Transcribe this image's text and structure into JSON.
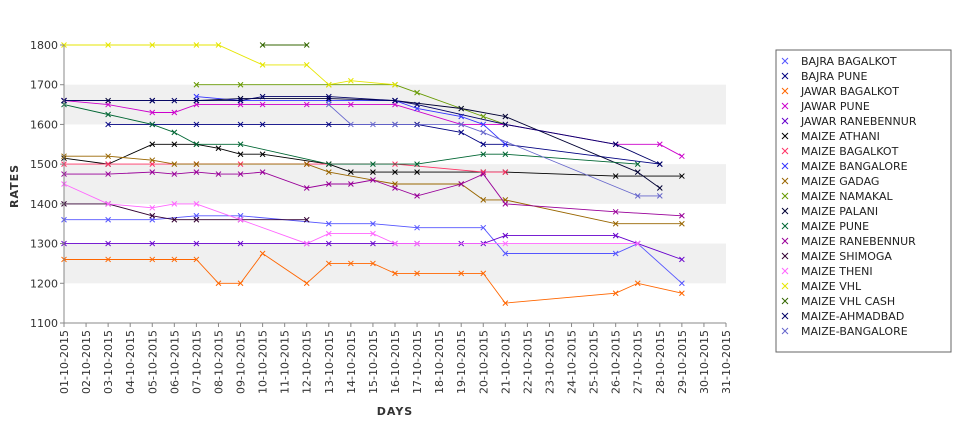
{
  "chart_data": {
    "type": "line",
    "title": "",
    "xlabel": "DAYS",
    "ylabel": "RATES",
    "ylim": [
      1100,
      1800
    ],
    "yticks": [
      1100,
      1200,
      1300,
      1400,
      1500,
      1600,
      1700,
      1800
    ],
    "grid": "alternating horizontal bands",
    "legend_position": "right",
    "x_dates": [
      "01-10-2015",
      "02-10-2015",
      "03-10-2015",
      "04-10-2015",
      "05-10-2015",
      "06-10-2015",
      "07-10-2015",
      "08-10-2015",
      "09-10-2015",
      "10-10-2015",
      "11-10-2015",
      "12-10-2015",
      "13-10-2015",
      "14-10-2015",
      "15-10-2015",
      "16-10-2015",
      "17-10-2015",
      "18-10-2015",
      "19-10-2015",
      "20-10-2015",
      "21-10-2015",
      "22-10-2015",
      "23-10-2015",
      "24-10-2015",
      "25-10-2015",
      "26-10-2015",
      "27-10-2015",
      "28-10-2015",
      "29-10-2015",
      "30-10-2015",
      "31-10-2015"
    ],
    "series": [
      {
        "name": "BAJRA BAGALKOT",
        "color": "#5555ff",
        "points": [
          [
            "01-10-2015",
            1360
          ],
          [
            "03-10-2015",
            1360
          ],
          [
            "05-10-2015",
            1360
          ],
          [
            "07-10-2015",
            1370
          ],
          [
            "09-10-2015",
            1370
          ],
          [
            "13-10-2015",
            1350
          ],
          [
            "15-10-2015",
            1350
          ],
          [
            "17-10-2015",
            1340
          ],
          [
            "20-10-2015",
            1340
          ],
          [
            "21-10-2015",
            1275
          ],
          [
            "26-10-2015",
            1275
          ],
          [
            "27-10-2015",
            1300
          ],
          [
            "29-10-2015",
            1200
          ]
        ]
      },
      {
        "name": "BAJRA PUNE",
        "color": "#000080",
        "points": [
          [
            "03-10-2015",
            1600
          ],
          [
            "05-10-2015",
            1600
          ],
          [
            "07-10-2015",
            1600
          ],
          [
            "09-10-2015",
            1600
          ],
          [
            "10-10-2015",
            1600
          ],
          [
            "13-10-2015",
            1600
          ],
          [
            "16-10-2015",
            1600
          ],
          [
            "17-10-2015",
            1600
          ],
          [
            "19-10-2015",
            1580
          ],
          [
            "20-10-2015",
            1550
          ],
          [
            "21-10-2015",
            1550
          ],
          [
            "28-10-2015",
            1500
          ]
        ]
      },
      {
        "name": "JAWAR BAGALKOT",
        "color": "#ff6600",
        "points": [
          [
            "01-10-2015",
            1260
          ],
          [
            "03-10-2015",
            1260
          ],
          [
            "05-10-2015",
            1260
          ],
          [
            "06-10-2015",
            1260
          ],
          [
            "07-10-2015",
            1260
          ],
          [
            "08-10-2015",
            1200
          ],
          [
            "09-10-2015",
            1200
          ],
          [
            "10-10-2015",
            1275
          ],
          [
            "12-10-2015",
            1200
          ],
          [
            "13-10-2015",
            1250
          ],
          [
            "14-10-2015",
            1250
          ],
          [
            "15-10-2015",
            1250
          ],
          [
            "16-10-2015",
            1225
          ],
          [
            "17-10-2015",
            1225
          ],
          [
            "19-10-2015",
            1225
          ],
          [
            "20-10-2015",
            1225
          ],
          [
            "21-10-2015",
            1150
          ],
          [
            "26-10-2015",
            1175
          ],
          [
            "27-10-2015",
            1200
          ],
          [
            "29-10-2015",
            1175
          ]
        ]
      },
      {
        "name": "JAWAR PUNE",
        "color": "#cc00cc",
        "points": [
          [
            "01-10-2015",
            1660
          ],
          [
            "03-10-2015",
            1650
          ],
          [
            "05-10-2015",
            1630
          ],
          [
            "06-10-2015",
            1630
          ],
          [
            "07-10-2015",
            1650
          ],
          [
            "09-10-2015",
            1650
          ],
          [
            "10-10-2015",
            1650
          ],
          [
            "12-10-2015",
            1650
          ],
          [
            "14-10-2015",
            1650
          ],
          [
            "16-10-2015",
            1650
          ],
          [
            "19-10-2015",
            1600
          ],
          [
            "21-10-2015",
            1600
          ],
          [
            "26-10-2015",
            1550
          ],
          [
            "28-10-2015",
            1550
          ],
          [
            "29-10-2015",
            1520
          ]
        ]
      },
      {
        "name": "JAWAR RANEBENNUR",
        "color": "#6600cc",
        "points": [
          [
            "01-10-2015",
            1300
          ],
          [
            "03-10-2015",
            1300
          ],
          [
            "05-10-2015",
            1300
          ],
          [
            "07-10-2015",
            1300
          ],
          [
            "09-10-2015",
            1300
          ],
          [
            "12-10-2015",
            1300
          ],
          [
            "13-10-2015",
            1300
          ],
          [
            "15-10-2015",
            1300
          ],
          [
            "16-10-2015",
            1300
          ],
          [
            "17-10-2015",
            1300
          ],
          [
            "19-10-2015",
            1300
          ],
          [
            "20-10-2015",
            1300
          ],
          [
            "21-10-2015",
            1320
          ],
          [
            "26-10-2015",
            1320
          ],
          [
            "27-10-2015",
            1300
          ],
          [
            "29-10-2015",
            1260
          ]
        ]
      },
      {
        "name": "MAIZE ATHANI",
        "color": "#000000",
        "points": [
          [
            "01-10-2015",
            1515
          ],
          [
            "03-10-2015",
            1500
          ],
          [
            "05-10-2015",
            1550
          ],
          [
            "06-10-2015",
            1550
          ],
          [
            "07-10-2015",
            1550
          ],
          [
            "08-10-2015",
            1540
          ],
          [
            "09-10-2015",
            1525
          ],
          [
            "10-10-2015",
            1525
          ],
          [
            "13-10-2015",
            1500
          ],
          [
            "14-10-2015",
            1480
          ],
          [
            "15-10-2015",
            1480
          ],
          [
            "16-10-2015",
            1480
          ],
          [
            "17-10-2015",
            1480
          ],
          [
            "20-10-2015",
            1480
          ],
          [
            "21-10-2015",
            1480
          ],
          [
            "26-10-2015",
            1470
          ],
          [
            "29-10-2015",
            1470
          ]
        ]
      },
      {
        "name": "MAIZE BAGALKOT",
        "color": "#ff3366",
        "points": [
          [
            "01-10-2015",
            1500
          ],
          [
            "03-10-2015",
            1500
          ],
          [
            "05-10-2015",
            1500
          ],
          [
            "07-10-2015",
            1500
          ],
          [
            "09-10-2015",
            1500
          ],
          [
            "12-10-2015",
            1500
          ],
          [
            "13-10-2015",
            1500
          ],
          [
            "16-10-2015",
            1500
          ],
          [
            "20-10-2015",
            1480
          ],
          [
            "21-10-2015",
            1480
          ]
        ]
      },
      {
        "name": "MAIZE BANGALORE",
        "color": "#3333ff",
        "points": [
          [
            "07-10-2015",
            1670
          ],
          [
            "09-10-2015",
            1660
          ],
          [
            "13-10-2015",
            1660
          ],
          [
            "16-10-2015",
            1660
          ],
          [
            "17-10-2015",
            1640
          ],
          [
            "19-10-2015",
            1620
          ],
          [
            "20-10-2015",
            1600
          ],
          [
            "21-10-2015",
            1550
          ]
        ]
      },
      {
        "name": "MAIZE GADAG",
        "color": "#996600",
        "points": [
          [
            "01-10-2015",
            1520
          ],
          [
            "03-10-2015",
            1520
          ],
          [
            "05-10-2015",
            1510
          ],
          [
            "06-10-2015",
            1500
          ],
          [
            "07-10-2015",
            1500
          ],
          [
            "12-10-2015",
            1500
          ],
          [
            "13-10-2015",
            1480
          ],
          [
            "16-10-2015",
            1450
          ],
          [
            "19-10-2015",
            1450
          ],
          [
            "20-10-2015",
            1410
          ],
          [
            "21-10-2015",
            1410
          ],
          [
            "26-10-2015",
            1350
          ],
          [
            "29-10-2015",
            1350
          ]
        ]
      },
      {
        "name": "MAIZE NAMAKAL",
        "color": "#669900",
        "points": [
          [
            "07-10-2015",
            1700
          ],
          [
            "09-10-2015",
            1700
          ],
          [
            "13-10-2015",
            1700
          ],
          [
            "16-10-2015",
            1700
          ],
          [
            "17-10-2015",
            1680
          ],
          [
            "19-10-2015",
            1640
          ],
          [
            "20-10-2015",
            1620
          ],
          [
            "21-10-2015",
            1600
          ]
        ]
      },
      {
        "name": "MAIZE PALANI",
        "color": "#000033",
        "points": [
          [
            "01-10-2015",
            1660
          ],
          [
            "03-10-2015",
            1660
          ],
          [
            "05-10-2015",
            1660
          ],
          [
            "07-10-2015",
            1660
          ],
          [
            "09-10-2015",
            1665
          ],
          [
            "13-10-2015",
            1665
          ],
          [
            "16-10-2015",
            1660
          ],
          [
            "19-10-2015",
            1640
          ],
          [
            "21-10-2015",
            1620
          ],
          [
            "27-10-2015",
            1480
          ],
          [
            "28-10-2015",
            1440
          ]
        ]
      },
      {
        "name": "MAIZE PUNE",
        "color": "#006633",
        "points": [
          [
            "01-10-2015",
            1650
          ],
          [
            "03-10-2015",
            1625
          ],
          [
            "05-10-2015",
            1600
          ],
          [
            "06-10-2015",
            1580
          ],
          [
            "07-10-2015",
            1550
          ],
          [
            "09-10-2015",
            1550
          ],
          [
            "13-10-2015",
            1500
          ],
          [
            "15-10-2015",
            1500
          ],
          [
            "17-10-2015",
            1500
          ],
          [
            "20-10-2015",
            1525
          ],
          [
            "21-10-2015",
            1525
          ],
          [
            "27-10-2015",
            1500
          ]
        ]
      },
      {
        "name": "MAIZE RANEBENNUR",
        "color": "#990099",
        "points": [
          [
            "01-10-2015",
            1475
          ],
          [
            "03-10-2015",
            1475
          ],
          [
            "05-10-2015",
            1480
          ],
          [
            "06-10-2015",
            1475
          ],
          [
            "07-10-2015",
            1480
          ],
          [
            "08-10-2015",
            1475
          ],
          [
            "09-10-2015",
            1475
          ],
          [
            "10-10-2015",
            1480
          ],
          [
            "12-10-2015",
            1440
          ],
          [
            "13-10-2015",
            1450
          ],
          [
            "14-10-2015",
            1450
          ],
          [
            "15-10-2015",
            1460
          ],
          [
            "16-10-2015",
            1440
          ],
          [
            "17-10-2015",
            1420
          ],
          [
            "19-10-2015",
            1450
          ],
          [
            "20-10-2015",
            1475
          ],
          [
            "21-10-2015",
            1400
          ],
          [
            "26-10-2015",
            1380
          ],
          [
            "29-10-2015",
            1370
          ]
        ]
      },
      {
        "name": "MAIZE SHIMOGA",
        "color": "#330033",
        "points": [
          [
            "01-10-2015",
            1400
          ],
          [
            "03-10-2015",
            1400
          ],
          [
            "05-10-2015",
            1370
          ],
          [
            "06-10-2015",
            1360
          ],
          [
            "07-10-2015",
            1360
          ],
          [
            "09-10-2015",
            1360
          ],
          [
            "12-10-2015",
            1360
          ]
        ]
      },
      {
        "name": "MAIZE THENI",
        "color": "#ff66ff",
        "points": [
          [
            "01-10-2015",
            1450
          ],
          [
            "03-10-2015",
            1400
          ],
          [
            "05-10-2015",
            1390
          ],
          [
            "06-10-2015",
            1400
          ],
          [
            "07-10-2015",
            1400
          ],
          [
            "09-10-2015",
            1360
          ],
          [
            "12-10-2015",
            1300
          ],
          [
            "13-10-2015",
            1325
          ],
          [
            "15-10-2015",
            1325
          ],
          [
            "16-10-2015",
            1300
          ],
          [
            "17-10-2015",
            1300
          ],
          [
            "21-10-2015",
            1300
          ],
          [
            "27-10-2015",
            1300
          ]
        ]
      },
      {
        "name": "MAIZE VHL",
        "color": "#e6e600",
        "points": [
          [
            "01-10-2015",
            1800
          ],
          [
            "03-10-2015",
            1800
          ],
          [
            "05-10-2015",
            1800
          ],
          [
            "07-10-2015",
            1800
          ],
          [
            "08-10-2015",
            1800
          ],
          [
            "10-10-2015",
            1750
          ],
          [
            "12-10-2015",
            1750
          ],
          [
            "13-10-2015",
            1700
          ],
          [
            "14-10-2015",
            1710
          ],
          [
            "16-10-2015",
            1700
          ]
        ]
      },
      {
        "name": "MAIZE VHL CASH",
        "color": "#336600",
        "points": [
          [
            "10-10-2015",
            1800
          ],
          [
            "12-10-2015",
            1800
          ]
        ]
      },
      {
        "name": "MAIZE-AHMADBAD",
        "color": "#000066",
        "points": [
          [
            "01-10-2015",
            1660
          ],
          [
            "05-10-2015",
            1660
          ],
          [
            "06-10-2015",
            1660
          ],
          [
            "07-10-2015",
            1660
          ],
          [
            "09-10-2015",
            1660
          ],
          [
            "10-10-2015",
            1670
          ],
          [
            "13-10-2015",
            1670
          ],
          [
            "16-10-2015",
            1660
          ],
          [
            "17-10-2015",
            1650
          ],
          [
            "21-10-2015",
            1600
          ],
          [
            "26-10-2015",
            1550
          ],
          [
            "28-10-2015",
            1500
          ]
        ]
      },
      {
        "name": "MAIZE-BANGALORE",
        "color": "#6666cc",
        "points": [
          [
            "13-10-2015",
            1650
          ],
          [
            "14-10-2015",
            1600
          ],
          [
            "15-10-2015",
            1600
          ],
          [
            "16-10-2015",
            1600
          ],
          [
            "19-10-2015",
            1600
          ],
          [
            "20-10-2015",
            1580
          ],
          [
            "27-10-2015",
            1420
          ],
          [
            "28-10-2015",
            1420
          ]
        ]
      }
    ]
  }
}
